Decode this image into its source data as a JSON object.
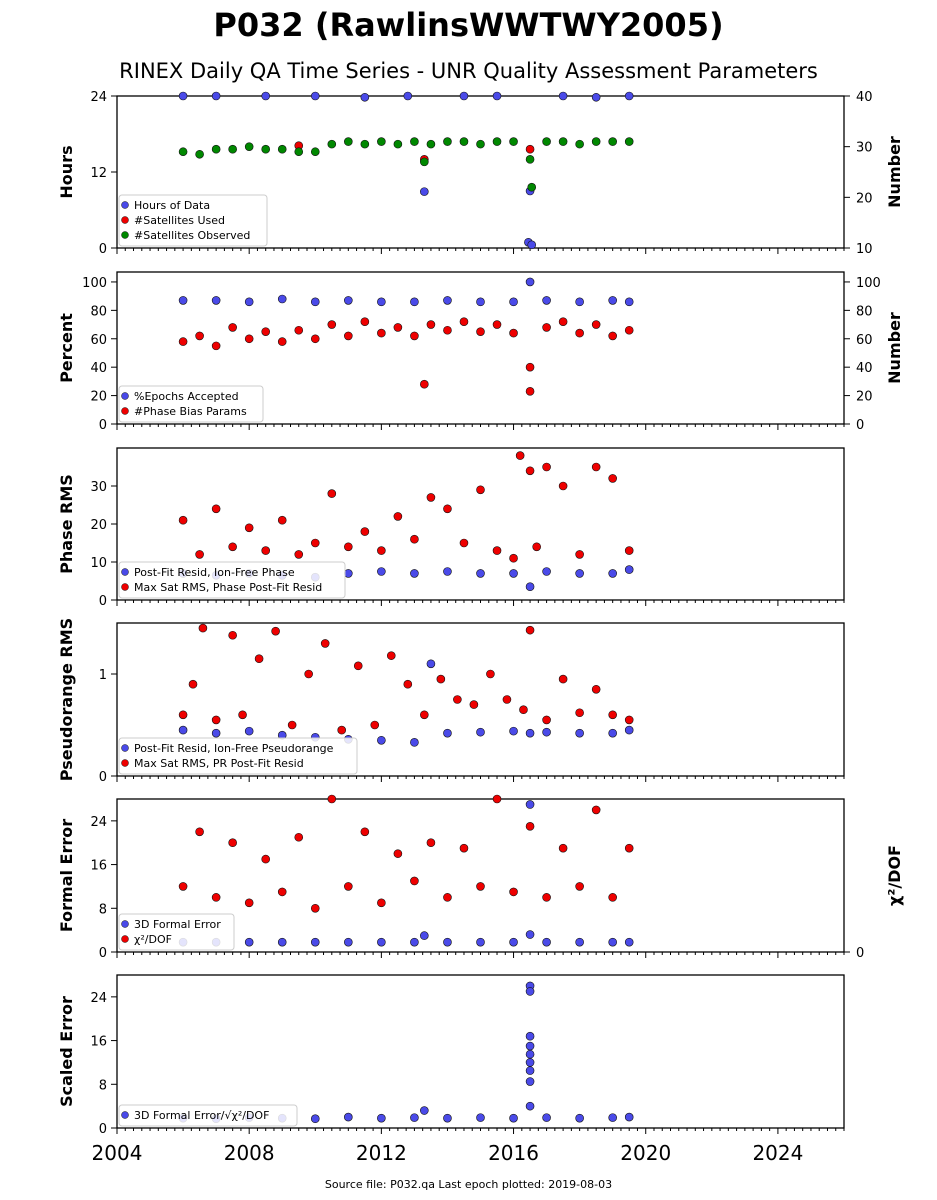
{
  "title": "P032 (RawlinsWWTWY2005)",
  "subtitle": "RINEX Daily QA Time Series - UNR Quality Assessment Parameters",
  "footer": "Source file: P032.qa Last epoch plotted: 2019-08-03",
  "x_ticks": [
    "2004",
    "2008",
    "2012",
    "2016",
    "2020",
    "2024"
  ],
  "colors": {
    "blue": "#4a4ae8",
    "red": "#ee0000",
    "green": "#008800",
    "navy": "#0a0a3a",
    "axis": "#000000"
  },
  "chart_data": [
    {
      "type": "scatter",
      "ylabel": "Hours",
      "ylabel_right": "Number",
      "xlim": [
        2004,
        2026
      ],
      "ylim": [
        0,
        24
      ],
      "ylim_right": [
        10,
        40
      ],
      "yticks": [
        0,
        12,
        24
      ],
      "yticks_right": [
        10,
        20,
        30,
        40
      ],
      "legend": [
        {
          "label": "Hours of Data",
          "color": "#4a4ae8"
        },
        {
          "label": "#Satellites Used",
          "color": "#ee0000"
        },
        {
          "label": "#Satellites Observed",
          "color": "#008800"
        }
      ],
      "series": [
        {
          "name": "Hours of Data",
          "axis": "left",
          "color": "#4a4ae8",
          "x": [
            2006.0,
            2007.0,
            2008.5,
            2010.0,
            2011.5,
            2012.8,
            2013.3,
            2014.5,
            2015.5,
            2016.45,
            2016.5,
            2016.55,
            2017.5,
            2018.5,
            2019.5
          ],
          "y": [
            24,
            24,
            24,
            24,
            23.8,
            24,
            8.9,
            24,
            24,
            0.9,
            9.0,
            0.5,
            24,
            23.8,
            24
          ]
        },
        {
          "name": "#Satellites Used",
          "axis": "right",
          "color": "#ee0000",
          "x": [
            2009.5,
            2013.3,
            2016.5
          ],
          "y": [
            30.2,
            27.5,
            29.5
          ]
        },
        {
          "name": "#Satellites Observed",
          "axis": "right",
          "color": "#008800",
          "x": [
            2006.0,
            2006.5,
            2007.0,
            2007.5,
            2008.0,
            2008.5,
            2009.0,
            2009.5,
            2010.0,
            2010.5,
            2011.0,
            2011.5,
            2012.0,
            2012.5,
            2013.0,
            2013.3,
            2013.5,
            2014.0,
            2014.5,
            2015.0,
            2015.5,
            2016.0,
            2016.5,
            2016.55,
            2017.0,
            2017.5,
            2018.0,
            2018.5,
            2019.0,
            2019.5
          ],
          "y": [
            29.0,
            28.5,
            29.5,
            29.5,
            30.0,
            29.5,
            29.5,
            29.0,
            29.0,
            30.5,
            31.0,
            30.5,
            31.0,
            30.5,
            31.0,
            27.0,
            30.5,
            31.0,
            31.0,
            30.5,
            31.0,
            31.0,
            27.5,
            22.0,
            31.0,
            31.0,
            30.5,
            31.0,
            31.0,
            31.0
          ]
        }
      ]
    },
    {
      "type": "scatter",
      "ylabel": "Percent",
      "ylabel_right": "Number",
      "xlim": [
        2004,
        2026
      ],
      "ylim": [
        0,
        107
      ],
      "ylim_right": [
        0,
        107
      ],
      "yticks": [
        0,
        20,
        40,
        60,
        80,
        100
      ],
      "yticks_right": [
        0,
        20,
        40,
        60,
        80,
        100
      ],
      "legend": [
        {
          "label": "%Epochs Accepted",
          "color": "#4a4ae8"
        },
        {
          "label": "#Phase Bias Params",
          "color": "#ee0000"
        }
      ],
      "series": [
        {
          "name": "%Epochs Accepted",
          "axis": "left",
          "color": "#4a4ae8",
          "x": [
            2006.0,
            2007.0,
            2008.0,
            2009.0,
            2010.0,
            2011.0,
            2012.0,
            2013.0,
            2014.0,
            2015.0,
            2016.0,
            2016.5,
            2017.0,
            2018.0,
            2019.0,
            2019.5
          ],
          "y": [
            87,
            87,
            86,
            88,
            86,
            87,
            86,
            86,
            87,
            86,
            86,
            100,
            87,
            86,
            87,
            86
          ]
        },
        {
          "name": "#Phase Bias Params",
          "axis": "right",
          "color": "#ee0000",
          "x": [
            2006.0,
            2006.5,
            2007.0,
            2007.5,
            2008.0,
            2008.5,
            2009.0,
            2009.5,
            2010.0,
            2010.5,
            2011.0,
            2011.5,
            2012.0,
            2012.5,
            2013.0,
            2013.3,
            2013.5,
            2014.0,
            2014.5,
            2015.0,
            2015.5,
            2016.0,
            2016.5,
            2016.5,
            2017.0,
            2017.5,
            2018.0,
            2018.5,
            2019.0,
            2019.5
          ],
          "y": [
            58,
            62,
            55,
            68,
            60,
            65,
            58,
            66,
            60,
            70,
            62,
            72,
            64,
            68,
            62,
            28,
            70,
            66,
            72,
            65,
            70,
            64,
            40,
            23,
            68,
            72,
            64,
            70,
            62,
            66
          ]
        }
      ]
    },
    {
      "type": "scatter",
      "ylabel": "Phase RMS",
      "xlim": [
        2004,
        2026
      ],
      "ylim": [
        0,
        40
      ],
      "yticks": [
        0,
        10,
        20,
        30
      ],
      "legend": [
        {
          "label": "Post-Fit Resid, Ion-Free Phase",
          "color": "#4a4ae8"
        },
        {
          "label": "Max Sat RMS, Phase Post-Fit Resid",
          "color": "#ee0000"
        }
      ],
      "series": [
        {
          "name": "Post-Fit Resid, Ion-Free Phase",
          "color": "#4a4ae8",
          "x": [
            2006.0,
            2007.0,
            2008.0,
            2009.0,
            2010.0,
            2011.0,
            2012.0,
            2013.0,
            2014.0,
            2015.0,
            2016.0,
            2016.5,
            2017.0,
            2018.0,
            2019.0,
            2019.5
          ],
          "y": [
            7,
            6.5,
            7,
            6.5,
            6,
            7,
            7.5,
            7,
            7.5,
            7,
            7,
            3.5,
            7.5,
            7,
            7,
            8
          ]
        },
        {
          "name": "Max Sat RMS, Phase Post-Fit Resid",
          "color": "#ee0000",
          "x": [
            2006.0,
            2006.5,
            2007.0,
            2007.5,
            2008.0,
            2008.5,
            2009.0,
            2009.5,
            2010.0,
            2010.5,
            2011.0,
            2011.5,
            2012.0,
            2012.5,
            2013.0,
            2013.5,
            2014.0,
            2014.5,
            2015.0,
            2015.5,
            2016.0,
            2016.2,
            2016.5,
            2016.7,
            2017.0,
            2017.5,
            2018.0,
            2018.5,
            2019.0,
            2019.5
          ],
          "y": [
            21,
            12,
            24,
            14,
            19,
            13,
            21,
            12,
            15,
            28,
            14,
            18,
            13,
            22,
            16,
            27,
            24,
            15,
            29,
            13,
            11,
            38,
            34,
            14,
            35,
            30,
            12,
            35,
            32,
            13
          ]
        }
      ]
    },
    {
      "type": "scatter",
      "ylabel": "Pseudorange RMS",
      "xlim": [
        2004,
        2026
      ],
      "ylim": [
        0,
        1.5
      ],
      "yticks": [
        0,
        1
      ],
      "legend": [
        {
          "label": "Post-Fit Resid, Ion-Free Pseudorange",
          "color": "#4a4ae8"
        },
        {
          "label": "Max Sat RMS, PR Post-Fit Resid",
          "color": "#ee0000"
        }
      ],
      "series": [
        {
          "name": "Post-Fit Resid, Ion-Free Pseudorange",
          "color": "#4a4ae8",
          "x": [
            2006.0,
            2007.0,
            2008.0,
            2009.0,
            2010.0,
            2011.0,
            2012.0,
            2013.0,
            2013.5,
            2014.0,
            2015.0,
            2016.0,
            2016.5,
            2017.0,
            2018.0,
            2019.0,
            2019.5
          ],
          "y": [
            0.45,
            0.42,
            0.44,
            0.4,
            0.38,
            0.36,
            0.35,
            0.33,
            1.1,
            0.42,
            0.43,
            0.44,
            0.42,
            0.43,
            0.42,
            0.42,
            0.45
          ]
        },
        {
          "name": "Max Sat RMS, PR Post-Fit Resid",
          "color": "#ee0000",
          "x": [
            2006.0,
            2006.3,
            2006.6,
            2007.0,
            2007.5,
            2007.8,
            2008.3,
            2008.8,
            2009.3,
            2009.8,
            2010.3,
            2010.8,
            2011.3,
            2011.8,
            2012.3,
            2012.8,
            2013.3,
            2013.8,
            2014.3,
            2014.8,
            2015.3,
            2015.8,
            2016.3,
            2016.5,
            2017.0,
            2017.5,
            2018.0,
            2018.5,
            2019.0,
            2019.5
          ],
          "y": [
            0.6,
            0.9,
            1.45,
            0.55,
            1.38,
            0.6,
            1.15,
            1.42,
            0.5,
            1.0,
            1.3,
            0.45,
            1.08,
            0.5,
            1.18,
            0.9,
            0.6,
            0.95,
            0.75,
            0.7,
            1.0,
            0.75,
            0.65,
            1.43,
            0.55,
            0.95,
            0.62,
            0.85,
            0.6,
            0.55
          ]
        }
      ]
    },
    {
      "type": "scatter",
      "ylabel": "Formal Error",
      "ylabel_right": "χ²/DOF",
      "xlim": [
        2004,
        2026
      ],
      "ylim": [
        0,
        28
      ],
      "ylim_right": [
        0,
        28
      ],
      "yticks": [
        0,
        8,
        16,
        24
      ],
      "yticks_right": [
        0
      ],
      "legend": [
        {
          "label": "3D Formal Error",
          "color": "#4a4ae8"
        },
        {
          "label": "χ²/DOF",
          "color": "#ee0000"
        }
      ],
      "series": [
        {
          "name": "3D Formal Error",
          "axis": "left",
          "color": "#4a4ae8",
          "x": [
            2006.0,
            2007.0,
            2008.0,
            2009.0,
            2010.0,
            2011.0,
            2012.0,
            2013.0,
            2013.3,
            2014.0,
            2015.0,
            2016.0,
            2016.5,
            2016.5,
            2017.0,
            2018.0,
            2019.0,
            2019.5
          ],
          "y": [
            1.8,
            1.8,
            1.8,
            1.8,
            1.8,
            1.8,
            1.8,
            1.8,
            3.0,
            1.8,
            1.8,
            1.8,
            27.0,
            3.2,
            1.8,
            1.8,
            1.8,
            1.8
          ]
        },
        {
          "name": "χ²/DOF",
          "axis": "right",
          "color": "#ee0000",
          "x": [
            2006.0,
            2006.5,
            2007.0,
            2007.5,
            2008.0,
            2008.5,
            2009.0,
            2009.5,
            2010.0,
            2010.5,
            2011.0,
            2011.5,
            2012.0,
            2012.5,
            2013.0,
            2013.5,
            2014.0,
            2014.5,
            2015.0,
            2015.5,
            2016.0,
            2016.5,
            2017.0,
            2017.5,
            2018.0,
            2018.5,
            2019.0,
            2019.5
          ],
          "y": [
            12,
            22,
            10,
            20,
            9,
            17,
            11,
            21,
            8,
            28,
            12,
            22,
            9,
            18,
            13,
            20,
            10,
            19,
            12,
            28,
            11,
            23,
            10,
            19,
            12,
            26,
            10,
            19
          ]
        }
      ]
    },
    {
      "type": "scatter",
      "ylabel": "Scaled Error",
      "xlim": [
        2004,
        2026
      ],
      "ylim": [
        0,
        28
      ],
      "yticks": [
        0,
        8,
        16,
        24
      ],
      "legend": [
        {
          "label": "3D Formal Error/√χ²/DOF",
          "color": "#4a4ae8"
        }
      ],
      "series": [
        {
          "name": "3D Formal Error/√χ²/DOF",
          "color": "#4a4ae8",
          "x": [
            2006.0,
            2007.0,
            2008.0,
            2009.0,
            2010.0,
            2011.0,
            2012.0,
            2013.0,
            2013.3,
            2014.0,
            2015.0,
            2016.0,
            2016.5,
            2016.5,
            2016.5,
            2016.5,
            2016.5,
            2016.5,
            2016.5,
            2016.5,
            2016.5,
            2017.0,
            2018.0,
            2019.0,
            2019.5
          ],
          "y": [
            1.8,
            1.7,
            1.9,
            1.8,
            1.7,
            2.0,
            1.8,
            1.9,
            3.2,
            1.8,
            1.9,
            1.8,
            26.0,
            25.0,
            16.8,
            15.0,
            13.5,
            12.0,
            10.5,
            8.5,
            4.0,
            1.9,
            1.8,
            1.9,
            2.0
          ]
        }
      ]
    }
  ]
}
